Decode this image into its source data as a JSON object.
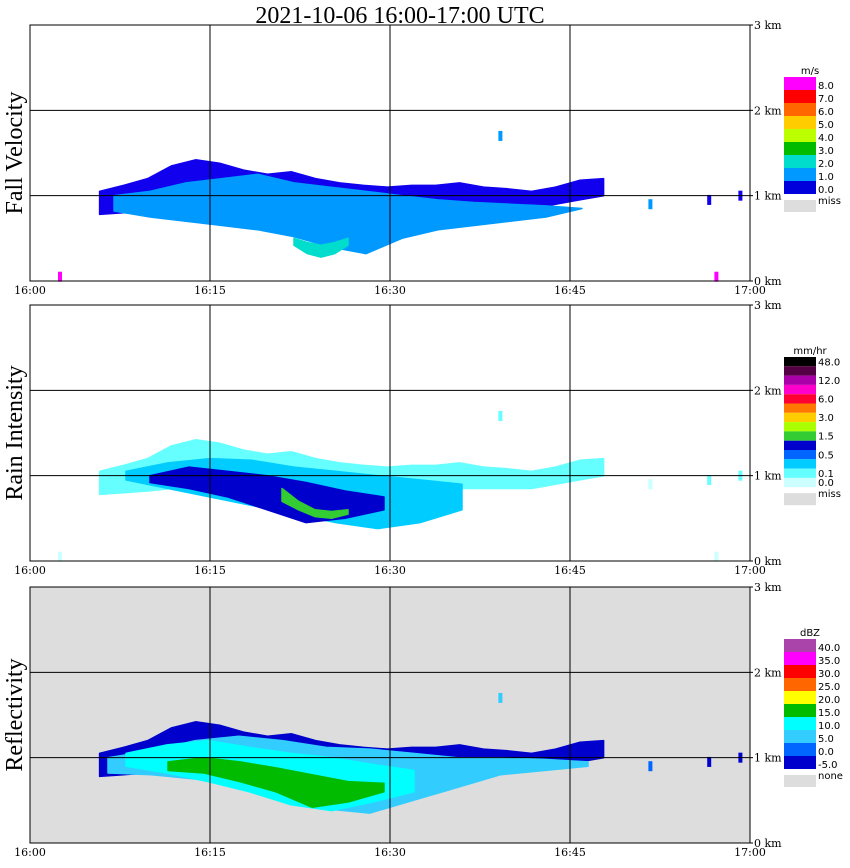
{
  "chart_data": {
    "type": "heatmap",
    "title": "2021-10-06   16:00-17:00 UTC",
    "x_ticks": [
      "16:00",
      "16:15",
      "16:30",
      "16:45",
      "17:00"
    ],
    "y_ticks": [
      "0 km",
      "1 km",
      "2 km",
      "3 km"
    ],
    "xlim_minutes": [
      0,
      60
    ],
    "ylim_km": [
      0,
      3.0
    ],
    "grid": true,
    "legend_placement": "right",
    "panels": [
      {
        "name": "Fall Velocity",
        "ylabel": "Fall Velocity",
        "unit": "m/s",
        "background": "#ffffff",
        "legend": [
          {
            "label": "8.0",
            "color": "#ff00ff"
          },
          {
            "label": "7.0",
            "color": "#ff0000"
          },
          {
            "label": "6.0",
            "color": "#ff6600"
          },
          {
            "label": "5.0",
            "color": "#ffcc00"
          },
          {
            "label": "4.0",
            "color": "#bbff00"
          },
          {
            "label": "3.0",
            "color": "#00bb00"
          },
          {
            "label": "2.0",
            "color": "#00ddcc"
          },
          {
            "label": "1.0",
            "color": "#0099ff"
          },
          {
            "label": "0.0",
            "color": "#0000dd"
          }
        ],
        "miss_label": "miss",
        "bands": [
          {
            "color": "#1100ee",
            "x0": 5.8,
            "x1": 47.8,
            "top": [
              1.05,
              1.12,
              1.2,
              1.35,
              1.42,
              1.38,
              1.3,
              1.25,
              1.28,
              1.2,
              1.15,
              1.12,
              1.1,
              1.12,
              1.12,
              1.15,
              1.1,
              1.08,
              1.05,
              1.1,
              1.18,
              1.2
            ],
            "bottom": [
              0.78,
              0.8,
              0.82,
              0.85,
              0.85,
              0.85,
              0.85,
              0.85,
              0.85,
              0.85,
              0.85,
              0.85,
              0.85,
              0.85,
              0.85,
              0.85,
              0.85,
              0.85,
              0.85,
              0.9,
              0.95,
              1.0
            ]
          },
          {
            "color": "#0099ff",
            "x0": 7.0,
            "x1": 46.0,
            "top": [
              1.0,
              1.05,
              1.15,
              1.2,
              1.25,
              1.15,
              1.1,
              1.05,
              1.0,
              0.95,
              0.92,
              0.9,
              0.88,
              0.85
            ],
            "bottom": [
              0.82,
              0.75,
              0.7,
              0.65,
              0.6,
              0.52,
              0.4,
              0.32,
              0.5,
              0.6,
              0.65,
              0.7,
              0.75,
              0.85
            ]
          },
          {
            "color": "#00ddcc",
            "x0": 22.0,
            "x1": 26.5,
            "top": [
              0.5,
              0.45,
              0.42,
              0.45,
              0.5
            ],
            "bottom": [
              0.42,
              0.32,
              0.28,
              0.32,
              0.42
            ]
          }
        ],
        "spots": [
          {
            "x": 39.2,
            "y": 1.7,
            "color": "#0099ff"
          },
          {
            "x": 51.7,
            "y": 0.9,
            "color": "#0099ff"
          },
          {
            "x": 56.6,
            "y": 0.95,
            "color": "#1100ee"
          },
          {
            "x": 59.2,
            "y": 1.0,
            "color": "#1100ee"
          },
          {
            "x": 2.5,
            "y": 0.05,
            "color": "#ff00ff"
          },
          {
            "x": 57.2,
            "y": 0.05,
            "color": "#ff00ff"
          }
        ]
      },
      {
        "name": "Rain Intensity",
        "ylabel": "Rain Intensity",
        "unit": "mm/hr",
        "background": "#ffffff",
        "legend": [
          {
            "label": "48.0",
            "color": "#000000"
          },
          {
            "label": "",
            "color": "#550044"
          },
          {
            "label": "12.0",
            "color": "#aa00aa"
          },
          {
            "label": "",
            "color": "#ff00cc"
          },
          {
            "label": "6.0",
            "color": "#ff0033"
          },
          {
            "label": "",
            "color": "#ff7700"
          },
          {
            "label": "3.0",
            "color": "#ffcc00"
          },
          {
            "label": "",
            "color": "#aaff00"
          },
          {
            "label": "1.5",
            "color": "#33cc33"
          },
          {
            "label": "",
            "color": "#0000cc"
          },
          {
            "label": "0.5",
            "color": "#0066ff"
          },
          {
            "label": "",
            "color": "#00ccff"
          },
          {
            "label": "0.1",
            "color": "#66ffff"
          },
          {
            "label": "0.0",
            "color": "#ccffff"
          }
        ],
        "miss_label": "miss",
        "bands": [
          {
            "color": "#66ffff",
            "x0": 5.8,
            "x1": 47.8,
            "top": [
              1.05,
              1.12,
              1.2,
              1.35,
              1.42,
              1.38,
              1.3,
              1.25,
              1.28,
              1.2,
              1.15,
              1.12,
              1.1,
              1.12,
              1.12,
              1.15,
              1.1,
              1.08,
              1.05,
              1.1,
              1.18,
              1.2
            ],
            "bottom": [
              0.78,
              0.8,
              0.82,
              0.85,
              0.85,
              0.85,
              0.85,
              0.85,
              0.85,
              0.85,
              0.85,
              0.85,
              0.85,
              0.85,
              0.85,
              0.85,
              0.85,
              0.85,
              0.85,
              0.9,
              0.95,
              1.0
            ]
          },
          {
            "color": "#00ccff",
            "x0": 8.0,
            "x1": 36.0,
            "top": [
              1.05,
              1.15,
              1.2,
              1.18,
              1.1,
              1.05,
              1.0,
              0.95,
              0.9
            ],
            "bottom": [
              0.95,
              0.85,
              0.75,
              0.65,
              0.55,
              0.45,
              0.38,
              0.45,
              0.6
            ]
          },
          {
            "color": "#0000cc",
            "x0": 10.0,
            "x1": 29.5,
            "top": [
              1.0,
              1.1,
              1.05,
              1.0,
              0.92,
              0.82,
              0.75
            ],
            "bottom": [
              0.92,
              0.85,
              0.75,
              0.6,
              0.45,
              0.5,
              0.6
            ]
          },
          {
            "color": "#33cc33",
            "x0": 21.0,
            "x1": 26.5,
            "top": [
              0.85,
              0.7,
              0.6,
              0.58,
              0.6
            ],
            "bottom": [
              0.7,
              0.6,
              0.52,
              0.5,
              0.55
            ]
          }
        ],
        "spots": [
          {
            "x": 39.2,
            "y": 1.7,
            "color": "#66ffff"
          },
          {
            "x": 51.7,
            "y": 0.9,
            "color": "#ccffff"
          },
          {
            "x": 56.6,
            "y": 0.95,
            "color": "#66ffff"
          },
          {
            "x": 59.2,
            "y": 1.0,
            "color": "#66ffff"
          },
          {
            "x": 2.5,
            "y": 0.05,
            "color": "#ccffff"
          },
          {
            "x": 57.2,
            "y": 0.05,
            "color": "#ccffff"
          }
        ]
      },
      {
        "name": "Reflectivity",
        "ylabel": "Reflectivity",
        "unit": "dBZ",
        "background": "#dddddd",
        "legend": [
          {
            "label": "40.0",
            "color": "#aa44aa"
          },
          {
            "label": "35.0",
            "color": "#ff00ff"
          },
          {
            "label": "30.0",
            "color": "#ff0000"
          },
          {
            "label": "25.0",
            "color": "#ff6600"
          },
          {
            "label": "20.0",
            "color": "#ffff00"
          },
          {
            "label": "15.0",
            "color": "#00bb00"
          },
          {
            "label": "10.0",
            "color": "#00ffff"
          },
          {
            "label": "5.0",
            "color": "#33ccff"
          },
          {
            "label": "0.0",
            "color": "#0066ff"
          },
          {
            "label": "-5.0",
            "color": "#0000cc"
          }
        ],
        "miss_label": "none",
        "bands": [
          {
            "color": "#0000cc",
            "x0": 5.8,
            "x1": 47.8,
            "top": [
              1.05,
              1.12,
              1.2,
              1.35,
              1.42,
              1.38,
              1.3,
              1.25,
              1.28,
              1.2,
              1.15,
              1.12,
              1.1,
              1.12,
              1.12,
              1.15,
              1.1,
              1.08,
              1.05,
              1.1,
              1.18,
              1.2
            ],
            "bottom": [
              0.78,
              0.8,
              0.82,
              0.85,
              0.85,
              0.85,
              0.85,
              0.85,
              0.85,
              0.85,
              0.85,
              0.85,
              0.85,
              0.85,
              0.85,
              0.85,
              0.85,
              0.85,
              0.85,
              0.9,
              0.95,
              1.0
            ]
          },
          {
            "color": "#33ccff",
            "x0": 6.5,
            "x1": 46.5,
            "top": [
              1.0,
              1.08,
              1.2,
              1.25,
              1.2,
              1.12,
              1.1,
              1.05,
              1.0,
              1.0,
              0.98,
              0.95
            ],
            "bottom": [
              0.82,
              0.8,
              0.75,
              0.68,
              0.55,
              0.4,
              0.35,
              0.5,
              0.65,
              0.8,
              0.85,
              0.9
            ]
          },
          {
            "color": "#00ffff",
            "x0": 8.0,
            "x1": 32.0,
            "top": [
              1.05,
              1.15,
              1.2,
              1.12,
              1.05,
              1.0,
              0.92,
              0.85
            ],
            "bottom": [
              0.9,
              0.82,
              0.72,
              0.6,
              0.45,
              0.38,
              0.48,
              0.6
            ]
          },
          {
            "color": "#00bb00",
            "x0": 11.5,
            "x1": 29.5,
            "top": [
              0.95,
              1.0,
              0.95,
              0.88,
              0.8,
              0.72,
              0.7
            ],
            "bottom": [
              0.85,
              0.82,
              0.72,
              0.6,
              0.42,
              0.48,
              0.6
            ]
          }
        ],
        "spots": [
          {
            "x": 39.2,
            "y": 1.7,
            "color": "#33ccff"
          },
          {
            "x": 51.7,
            "y": 0.9,
            "color": "#0066ff"
          },
          {
            "x": 56.6,
            "y": 0.95,
            "color": "#0000cc"
          },
          {
            "x": 59.2,
            "y": 1.0,
            "color": "#0000cc"
          }
        ]
      }
    ]
  }
}
